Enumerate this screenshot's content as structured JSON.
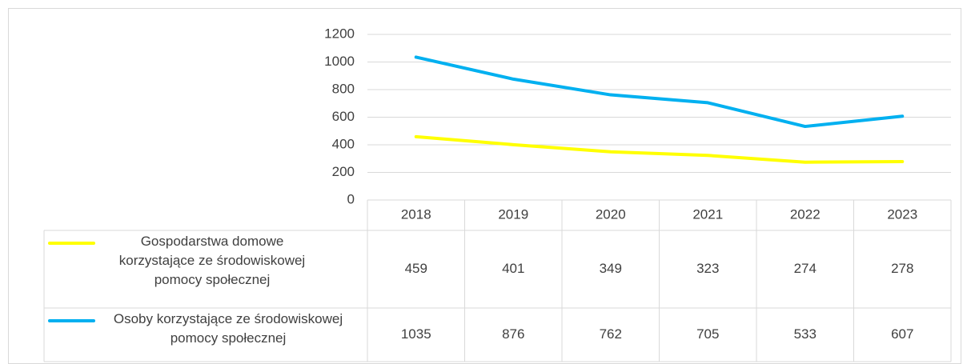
{
  "chart_data": {
    "type": "line",
    "categories": [
      "2018",
      "2019",
      "2020",
      "2021",
      "2022",
      "2023"
    ],
    "series": [
      {
        "name": "Gospodarstwa domowe korzystające ze środowiskowej pomocy społecznej",
        "color": "#ffff00",
        "values": [
          459,
          401,
          349,
          323,
          274,
          278
        ]
      },
      {
        "name": "Osoby korzystające ze środowiskowej pomocy społecznej",
        "color": "#00b0f0",
        "values": [
          1035,
          876,
          762,
          705,
          533,
          607
        ]
      }
    ],
    "ylim": [
      0,
      1200
    ],
    "yticks": [
      0,
      200,
      400,
      600,
      800,
      1000,
      1200
    ],
    "grid": true
  }
}
